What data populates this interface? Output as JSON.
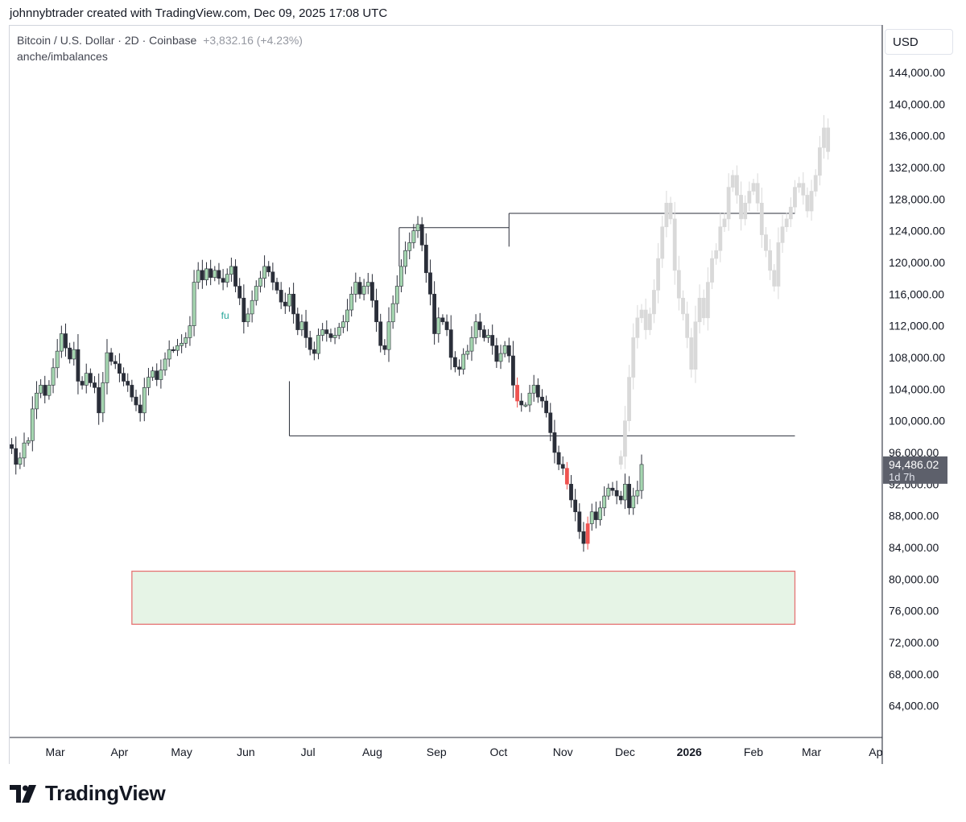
{
  "header": {
    "attribution": "johnnybtrader created with TradingView.com, Dec 09, 2025 17:08 UTC"
  },
  "legend": {
    "symbol": "Bitcoin / U.S. Dollar · 2D · Coinbase",
    "change": "+3,832.16 (+4.23%)",
    "indicator": "anche/imbalances"
  },
  "currency": "USD",
  "last_price": {
    "value": "94,486.02",
    "countdown": "1d 7h"
  },
  "annotation_text": "fu",
  "brand": {
    "name": "TradingView"
  },
  "colors": {
    "bull": "#a5d6b0",
    "bear": "#2a2e39",
    "imbalance": "#ef5350",
    "projection": "#d9d9d9",
    "zone_fill": "#e6f4e6",
    "zone_border": "#e57373",
    "level_line": "#2a2e39",
    "price_tag": "#5d606b"
  },
  "chart_data": {
    "type": "candlestick",
    "title": "Bitcoin / U.S. Dollar · 2D · Coinbase",
    "ylim": [
      60000,
      150000
    ],
    "y_ticks": [
      "64,000.00",
      "68,000.00",
      "72,000.00",
      "76,000.00",
      "80,000.00",
      "84,000.00",
      "88,000.00",
      "92,000.00",
      "96,000.00",
      "100,000.00",
      "104,000.00",
      "108,000.00",
      "112,000.00",
      "116,000.00",
      "120,000.00",
      "124,000.00",
      "128,000.00",
      "132,000.00",
      "136,000.00",
      "140,000.00",
      "144,000.00"
    ],
    "y_tick_values": [
      64000,
      68000,
      72000,
      76000,
      80000,
      84000,
      88000,
      92000,
      96000,
      100000,
      104000,
      108000,
      112000,
      116000,
      120000,
      124000,
      128000,
      132000,
      136000,
      140000,
      144000
    ],
    "x_ticks": [
      "Mar",
      "Apr",
      "May",
      "Jun",
      "Jul",
      "Aug",
      "Sep",
      "Oct",
      "Nov",
      "Dec",
      "2026",
      "Feb",
      "Mar",
      "Ap"
    ],
    "x_tick_dates": [
      "2025-03-01",
      "2025-04-01",
      "2025-05-01",
      "2025-06-01",
      "2025-07-01",
      "2025-08-01",
      "2025-09-01",
      "2025-10-01",
      "2025-11-01",
      "2025-12-01",
      "2026-01-01",
      "2026-02-01",
      "2026-03-01",
      "2026-04-01"
    ],
    "x_bold_ticks": [
      "2026"
    ],
    "date_range": [
      "2025-02-07",
      "2026-04-03"
    ],
    "candle_interval_days": 2,
    "last_date": "2025-12-09",
    "last_value": 94486.02,
    "closes": [
      [
        97000,
        96500,
        97800,
        96200,
        97500,
        96800,
        97200,
        95500,
        96800,
        89000
      ],
      [
        86000,
        84500,
        89000,
        85500,
        83000,
        85000,
        86500,
        85200,
        84000,
        82500
      ],
      [
        86000,
        84800,
        87500,
        83500,
        85500,
        87500,
        85500,
        83200,
        84300,
        82800
      ],
      [
        81000,
        77500,
        79500,
        83000,
        84500,
        85000,
        85200,
        85000,
        88500,
        94000
      ],
      [
        93800,
        94200,
        95000,
        96500,
        95300,
        97000,
        96500,
        94500,
        95300,
        97200
      ],
      [
        97500,
        101500,
        103500,
        104500,
        103200,
        104500,
        106700,
        108800,
        111000,
        109200
      ],
      [
        107800,
        109000,
        105000,
        104500,
        106000,
        104800,
        104200,
        101000,
        104800,
        108600
      ],
      [
        107500,
        107200,
        106000,
        105000,
        104500,
        103000,
        102000,
        101000,
        104200,
        105500
      ],
      [
        106300,
        105200,
        106400,
        107800,
        109000,
        108900,
        109500,
        109800,
        110500,
        112000
      ],
      [
        117500,
        119000,
        117800,
        119200,
        118100,
        119000,
        118000,
        117500,
        118500,
        119500
      ],
      [
        117000,
        115500,
        112500,
        113500,
        115200,
        117000,
        118000,
        119500,
        118800,
        117500
      ],
      [
        116500,
        115000,
        114500,
        116000,
        113500,
        111500,
        112500,
        110500,
        109000,
        108500
      ],
      [
        110800,
        111500,
        111000,
        110500,
        110800,
        111800,
        112500,
        114000,
        116000,
        117500
      ],
      [
        116000,
        117000,
        117500,
        115200,
        112500,
        109500,
        109000,
        112500,
        114800,
        117000
      ],
      [
        119500,
        121500,
        122500,
        124000,
        124800,
        122200,
        118700,
        116000,
        111000,
        113000
      ],
      [
        112500,
        111500,
        108000,
        106800,
        106500,
        108400,
        108800,
        110500,
        112500,
        111500
      ],
      [
        110500,
        110800,
        109500,
        107500,
        108500,
        109500,
        108200,
        104500,
        102500,
        102000
      ],
      [
        102000,
        103500,
        104500,
        103000,
        102500,
        101000,
        98500,
        96000,
        94500,
        94000
      ],
      [
        92000,
        90000,
        88500,
        86000,
        84500,
        87000,
        88500,
        87500,
        89000,
        90500
      ],
      [
        91500,
        91200,
        90500,
        90000,
        92000,
        89000,
        90500,
        91200,
        94486.02
      ]
    ],
    "projection_closes": [
      [
        95500,
        100000,
        105500,
        110500,
        113000,
        114000,
        111500,
        113500,
        116500,
        120500
      ],
      [
        124500,
        127500,
        125500,
        119000,
        115500,
        113500,
        110500,
        106500,
        112500,
        115500
      ],
      [
        113000,
        117500,
        120500,
        121500,
        124500,
        125500,
        129500,
        131000,
        128500,
        125500
      ],
      [
        127500,
        129000,
        130000,
        127500,
        123500,
        121500,
        119000,
        117000,
        122500,
        124500
      ],
      [
        125500,
        127000,
        129500,
        130000,
        128500,
        126500,
        129000,
        131000,
        134500,
        137000
      ],
      [
        134000
      ]
    ],
    "imbalance_candles": [
      "2025-10-10",
      "2025-11-03",
      "2025-11-13"
    ],
    "horizontal_levels": [
      {
        "value": 124400,
        "from": "2025-08-14",
        "to": "2025-10-06"
      },
      {
        "value": 126200,
        "from": "2025-10-06",
        "to": "2026-02-21"
      },
      {
        "value": 98100,
        "from": "2025-06-22",
        "to": "2026-02-21"
      }
    ],
    "zone": {
      "y_low": 74300,
      "y_high": 81000,
      "from": "2025-04-07",
      "to": "2026-02-21"
    },
    "annotation": {
      "label": "fu",
      "date": "2025-05-22",
      "value": 112500
    }
  }
}
